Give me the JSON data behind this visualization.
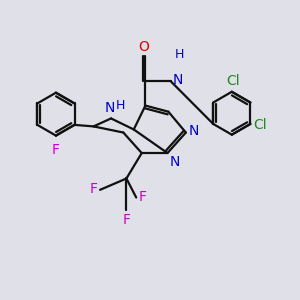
{
  "bg_color": "#e0e0e8",
  "bond_color": "#111111",
  "bond_width": 1.6,
  "F_color": "#cc00cc",
  "N_color": "#0000cc",
  "O_color": "#dd0000",
  "Cl_color": "#228822",
  "xlim": [
    -4.5,
    5.2
  ],
  "ylim": [
    -1.8,
    5.5
  ],
  "figsize": [
    3.0,
    3.0
  ],
  "dpi": 100
}
